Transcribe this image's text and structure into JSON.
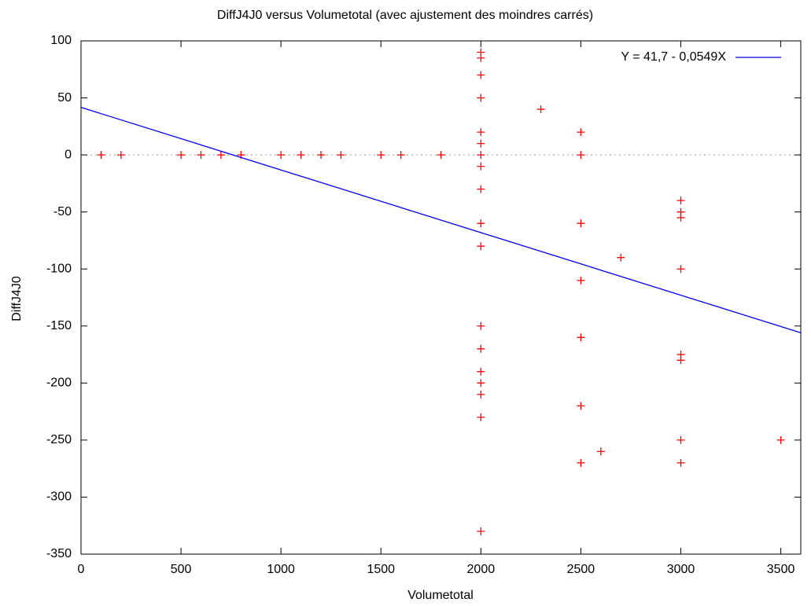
{
  "chart_data": {
    "type": "scatter",
    "title": "DiffJ4J0 versus Volumetotal (avec ajustement des moindres carrés)",
    "x_label": "Volumetotal",
    "y_label": "DiffJ4J0",
    "xlim": [
      0,
      3600
    ],
    "xticks": [
      0,
      500,
      1000,
      1500,
      2000,
      2500,
      3000,
      3500
    ],
    "ylim": [
      -350,
      100
    ],
    "yticks": [
      -350,
      -300,
      -250,
      -200,
      -150,
      -100,
      -50,
      0,
      50,
      100
    ],
    "zero_line": true,
    "legend": "upper right",
    "series": [
      {
        "type": "scatter",
        "color": "#ff0000",
        "x": [
          100,
          200,
          500,
          600,
          700,
          800,
          1000,
          1100,
          1200,
          1300,
          1500,
          1600,
          1800,
          2000,
          2000,
          2000,
          2000,
          2000,
          2000,
          2000,
          2000,
          2000,
          2000,
          2000,
          2000,
          2000,
          2000,
          2000,
          2000,
          2000,
          2000,
          2300,
          2500,
          2500,
          2500,
          2500,
          2500,
          2500,
          2500,
          2600,
          2700,
          3000,
          3000,
          3000,
          3000,
          3000,
          3000,
          3000,
          3000,
          3500
        ],
        "values": [
          0,
          0,
          0,
          0,
          0,
          0,
          0,
          0,
          0,
          0,
          0,
          0,
          0,
          90,
          85,
          70,
          50,
          20,
          10,
          0,
          -10,
          -30,
          -60,
          -80,
          -150,
          -170,
          -190,
          -200,
          -210,
          -230,
          -330,
          40,
          20,
          0,
          -60,
          -110,
          -160,
          -220,
          -270,
          -260,
          -90,
          -40,
          -50,
          -55,
          -100,
          -175,
          -180,
          -250,
          -270,
          -250
        ]
      },
      {
        "type": "line",
        "name": "Y = 41,7 - 0,0549X",
        "color": "#0000ff",
        "x": [
          0,
          3600
        ],
        "values": [
          41.7,
          -155.94
        ]
      }
    ]
  }
}
